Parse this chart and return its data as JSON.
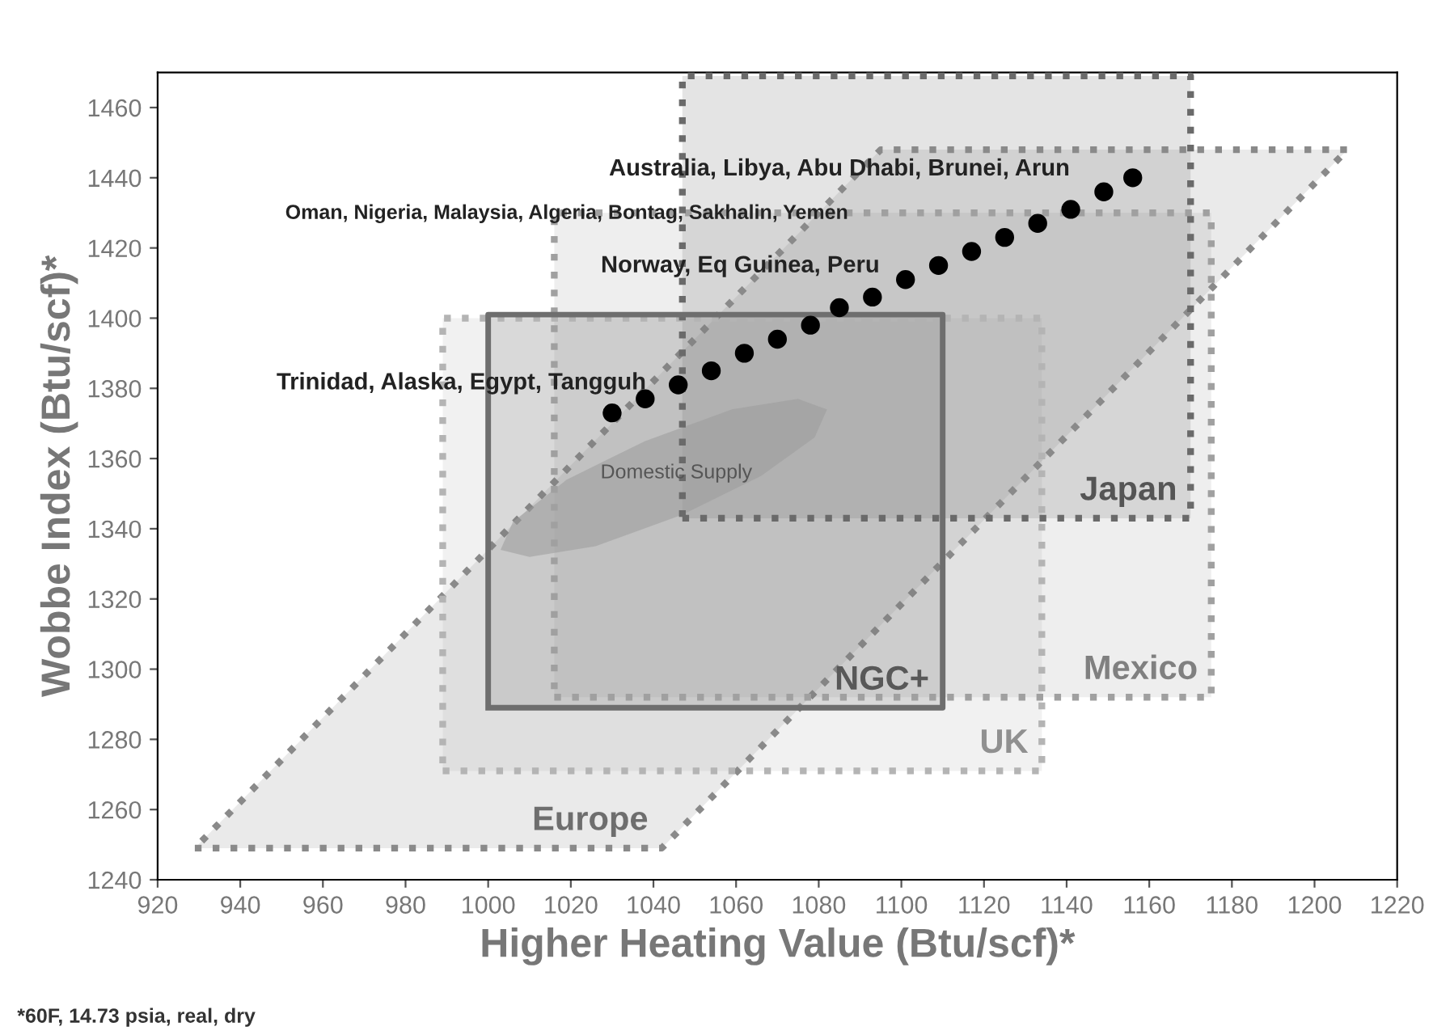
{
  "chart_data": {
    "type": "scatter",
    "xlabel": "Higher Heating Value (Btu/scf)*",
    "ylabel": "Wobbe Index (Btu/scf)*",
    "xlim": [
      920,
      1220
    ],
    "ylim": [
      1240,
      1470
    ],
    "xticks": [
      920,
      940,
      960,
      980,
      1000,
      1020,
      1040,
      1060,
      1080,
      1100,
      1120,
      1140,
      1160,
      1180,
      1200,
      1220
    ],
    "yticks": [
      1240,
      1260,
      1280,
      1300,
      1320,
      1340,
      1360,
      1380,
      1400,
      1420,
      1440,
      1460
    ],
    "grid": false,
    "legend": false,
    "series": [
      {
        "type": "area",
        "name": "Europe",
        "color": "#8a8a8a",
        "line_style": "dotted",
        "x": [
          929,
          1042,
          1208,
          1095,
          929
        ],
        "values": [
          1249,
          1249,
          1448,
          1448,
          1249
        ]
      },
      {
        "type": "area",
        "name": "UK",
        "color": "#b4b4b4",
        "line_style": "dotted",
        "x": [
          989,
          1134,
          1134,
          989,
          989
        ],
        "values": [
          1271,
          1271,
          1400,
          1400,
          1271
        ]
      },
      {
        "type": "area",
        "name": "Mexico",
        "color": "#a0a0a0",
        "line_style": "dotted",
        "x": [
          1016,
          1175,
          1175,
          1016,
          1016
        ],
        "values": [
          1292,
          1292,
          1430,
          1430,
          1292
        ]
      },
      {
        "type": "area",
        "name": "Japan",
        "color": "#6a6a6a",
        "line_style": "dotted",
        "x": [
          1047,
          1170,
          1170,
          1047,
          1047
        ],
        "values": [
          1343,
          1343,
          1469,
          1469,
          1343
        ]
      },
      {
        "type": "area",
        "name": "NGC+",
        "color": "#6e6e6e",
        "line_style": "solid",
        "x": [
          1000,
          1110,
          1110,
          1000,
          1000
        ],
        "values": [
          1289,
          1289,
          1401,
          1401,
          1289
        ]
      },
      {
        "type": "area",
        "name": "Domestic Supply",
        "color": "#9a9a9a",
        "x": [
          1082,
          1079,
          1066,
          1047,
          1026,
          1010,
          1003,
          1006,
          1019,
          1038,
          1059,
          1075,
          1082
        ],
        "values": [
          1374,
          1366,
          1355,
          1344,
          1335,
          1332,
          1334,
          1342,
          1354,
          1365,
          1374,
          1377,
          1374
        ]
      },
      {
        "color": "#000000",
        "marker": "circle",
        "x": [
          1030,
          1038,
          1046,
          1054,
          1062,
          1070,
          1078,
          1085,
          1093,
          1101,
          1109,
          1117,
          1125,
          1133,
          1141,
          1149,
          1156
        ],
        "values": [
          1373,
          1377,
          1381,
          1385,
          1390,
          1394,
          1398,
          1403,
          1406,
          1411,
          1415,
          1419,
          1423,
          1427,
          1431,
          1436,
          1440
        ]
      }
    ],
    "annotations": [
      "Australia, Libya, Abu Dhabi, Brunei, Arun",
      "Oman, Nigeria, Malaysia, Algeria, Bontag, Sakhalin, Yemen",
      "Norway, Eq Guinea, Peru",
      "Trinidad, Alaska, Egypt, Tangguh",
      "*60F, 14.73 psia, real, dry"
    ]
  }
}
